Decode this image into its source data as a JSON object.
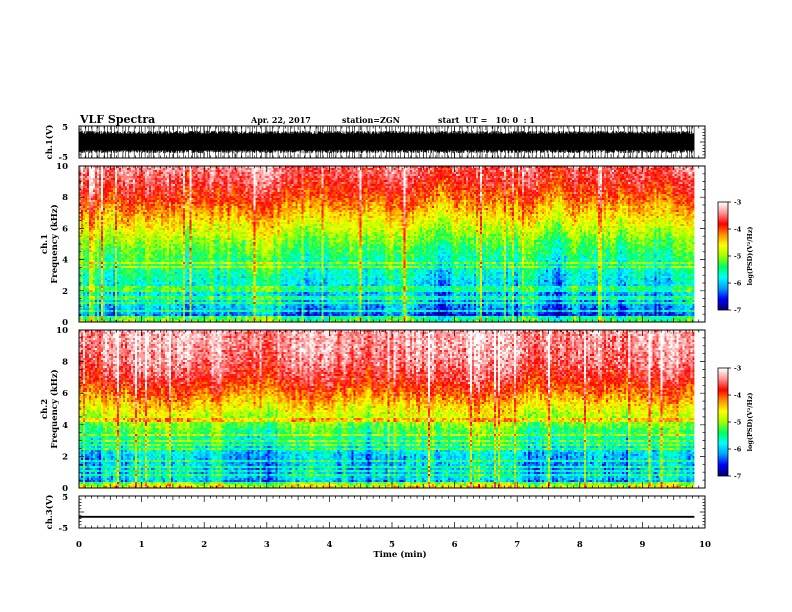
{
  "header": {
    "title": "VLF Spectra",
    "date": "Apr. 22, 2017",
    "station": "station=ZGN",
    "start": "start  UT =   10: 0  : 1"
  },
  "chart_data": {
    "type": "heatmap",
    "xlabel": "Time  (min)",
    "xlim": [
      0,
      10
    ],
    "x_ticks": [
      "0",
      "1",
      "2",
      "3",
      "4",
      "5",
      "6",
      "7",
      "8",
      "9",
      "10"
    ],
    "data_end_min": 9.83,
    "panels": [
      {
        "id": "ch1_waveform",
        "kind": "waveform",
        "ylabel": "ch.1(V)",
        "ylim": [
          -5,
          5
        ],
        "y_ticks": [
          "5",
          "-5"
        ],
        "amplitude_range": [
          -3.5,
          3.5
        ]
      },
      {
        "id": "ch1_spectrogram",
        "kind": "spectrogram",
        "ylabel": [
          "ch.1",
          "Frequency  (kHz)"
        ],
        "ylim": [
          0,
          10
        ],
        "y_ticks": [
          "10",
          "8",
          "6",
          "4",
          "2",
          "0"
        ],
        "colorbar": {
          "range": [
            -7,
            -3
          ],
          "ticks": [
            "-3",
            "-4",
            "-5",
            "-6",
            "-7"
          ],
          "label": "log(PSD)(V²/Hz)"
        },
        "level_profile": [
          [
            0,
            -6.3
          ],
          [
            0.3,
            -6.5
          ],
          [
            0.6,
            -6.3
          ],
          [
            1,
            -6.1
          ],
          [
            2,
            -6.0
          ],
          [
            3,
            -5.7
          ],
          [
            4,
            -5.5
          ],
          [
            5,
            -5.2
          ],
          [
            6,
            -4.8
          ],
          [
            7,
            -4.4
          ],
          [
            8,
            -4.0
          ],
          [
            9,
            -3.7
          ],
          [
            10,
            -3.5
          ]
        ]
      },
      {
        "id": "ch2_spectrogram",
        "kind": "spectrogram",
        "ylabel": [
          "ch.2",
          "Frequency  (kHz)"
        ],
        "ylim": [
          0,
          10
        ],
        "y_ticks": [
          "10",
          "8",
          "6",
          "4",
          "2",
          "0"
        ],
        "colorbar": {
          "range": [
            -7,
            -3
          ],
          "ticks": [
            "-3",
            "-4",
            "-5",
            "-6",
            "-7"
          ],
          "label": "log(PSD)(V²/Hz)"
        },
        "level_profile": [
          [
            0,
            -5.6
          ],
          [
            0.3,
            -6.2
          ],
          [
            0.6,
            -5.9
          ],
          [
            1,
            -6.1
          ],
          [
            2,
            -6.0
          ],
          [
            3,
            -5.6
          ],
          [
            4,
            -5.1
          ],
          [
            5,
            -4.6
          ],
          [
            6,
            -4.1
          ],
          [
            7,
            -3.7
          ],
          [
            8,
            -3.45
          ],
          [
            9,
            -3.35
          ],
          [
            10,
            -3.3
          ]
        ]
      },
      {
        "id": "ch3_waveform",
        "kind": "waveform",
        "ylabel": "ch.3(V)",
        "ylim": [
          -5,
          5
        ],
        "y_ticks": [
          "5",
          "-5"
        ],
        "constant_level": -1.5
      }
    ],
    "colormap": [
      "#000070",
      "#0000ff",
      "#00a0ff",
      "#00ffff",
      "#00ff60",
      "#a0ff00",
      "#ffff00",
      "#ff9000",
      "#ff0000",
      "#ff9090",
      "#ffffff"
    ]
  }
}
